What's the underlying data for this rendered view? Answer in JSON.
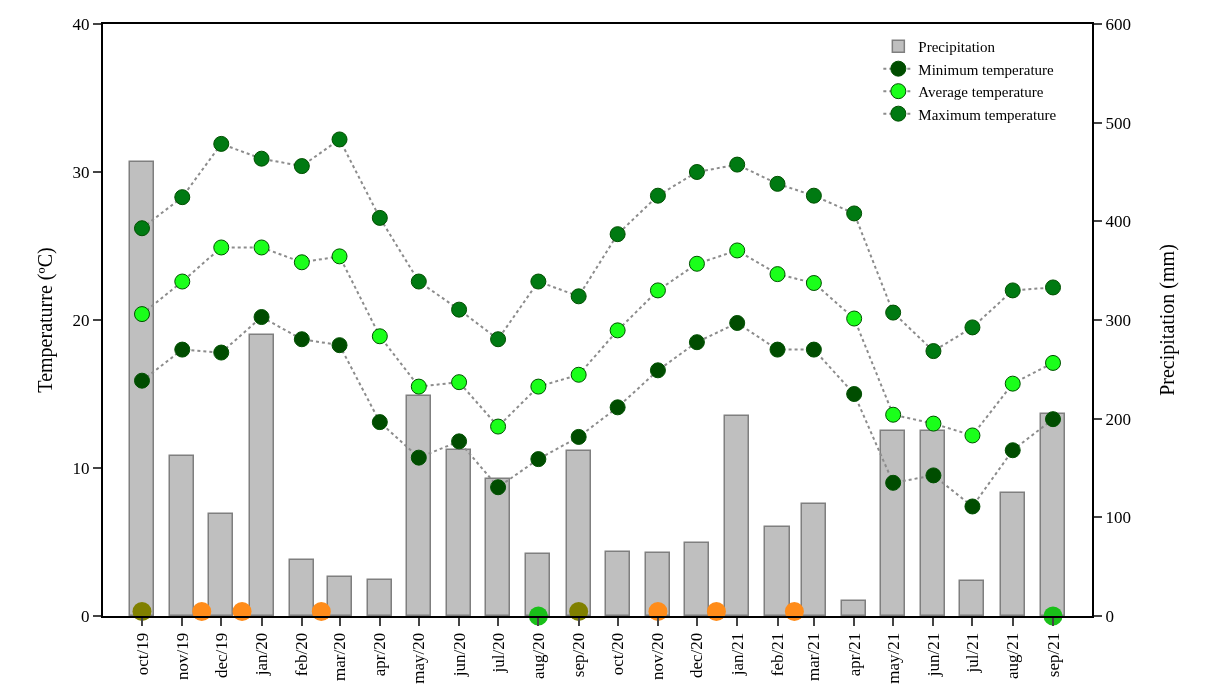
{
  "chart_data": {
    "type": "line",
    "x": [
      "2019-10",
      "2019-11",
      "2019-12",
      "2020-01",
      "2020-02",
      "2020-03",
      "2020-04",
      "2020-05",
      "2020-06",
      "2020-07",
      "2020-08",
      "2020-09",
      "2020-10",
      "2020-11",
      "2020-12",
      "2021-01",
      "2021-02",
      "2021-03",
      "2021-04",
      "2021-05",
      "2021-06",
      "2021-07",
      "2021-08",
      "2021-09"
    ],
    "xlim": [
      "2019-09-01",
      "2021-10-01"
    ],
    "xticks": [
      {
        "value": "2019-10",
        "label": "oct/19"
      },
      {
        "value": "2019-11",
        "label": "nov/19"
      },
      {
        "value": "2019-12",
        "label": "dec/19"
      },
      {
        "value": "2020-01",
        "label": "jan/20"
      },
      {
        "value": "2020-02",
        "label": "feb/20"
      },
      {
        "value": "2020-03",
        "label": "mar/20"
      },
      {
        "value": "2020-04",
        "label": "apr/20"
      },
      {
        "value": "2020-05",
        "label": "may/20"
      },
      {
        "value": "2020-06",
        "label": "jun/20"
      },
      {
        "value": "2020-07",
        "label": "jul/20"
      },
      {
        "value": "2020-08",
        "label": "aug/20"
      },
      {
        "value": "2020-09",
        "label": "sep/20"
      },
      {
        "value": "2020-10",
        "label": "oct/20"
      },
      {
        "value": "2020-11",
        "label": "nov/20"
      },
      {
        "value": "2020-12",
        "label": "dec/20"
      },
      {
        "value": "2021-01",
        "label": "jan/21"
      },
      {
        "value": "2021-02",
        "label": "feb/21"
      },
      {
        "value": "2021-03",
        "label": "mar/21"
      },
      {
        "value": "2021-04",
        "label": "apr/21"
      },
      {
        "value": "2021-05",
        "label": "may/21"
      },
      {
        "value": "2021-06",
        "label": "jun/21"
      },
      {
        "value": "2021-07",
        "label": "jul/21"
      },
      {
        "value": "2021-08",
        "label": "aug/21"
      },
      {
        "value": "2021-09",
        "label": "sep/21"
      }
    ],
    "ylabel": "Temperaturre (ºC)",
    "y2label": "Precipitation (mm)",
    "ylim": [
      0,
      40
    ],
    "yticks": [
      0,
      10,
      20,
      30,
      40
    ],
    "y2lim": [
      0,
      600
    ],
    "y2ticks": [
      0,
      100,
      200,
      300,
      400,
      500,
      600
    ],
    "legend": "top right",
    "marker": "circle",
    "line_style": "dotted",
    "series": [
      {
        "name": "Precipitation",
        "type": "bar",
        "axis": "y2",
        "color": "#bfbfbf",
        "values": [
          460,
          162,
          103,
          285,
          57,
          40,
          36,
          223,
          168,
          139,
          63,
          167,
          65,
          64,
          74,
          203,
          90,
          114,
          15,
          188,
          187,
          35,
          125,
          205
        ]
      },
      {
        "name": "Minimum temperature",
        "color": "#004d00",
        "values": [
          15.9,
          18.0,
          17.8,
          20.2,
          18.7,
          18.3,
          13.1,
          10.7,
          11.8,
          8.7,
          10.6,
          12.1,
          14.1,
          16.6,
          18.5,
          19.8,
          18.0,
          18.0,
          15.0,
          9.0,
          9.5,
          7.4,
          11.2,
          13.3
        ]
      },
      {
        "name": "Average temperature",
        "color": "#1aff1a",
        "values": [
          20.4,
          22.6,
          24.9,
          24.9,
          23.9,
          24.3,
          18.9,
          15.5,
          15.8,
          12.8,
          15.5,
          16.3,
          19.3,
          22.0,
          23.8,
          24.7,
          23.1,
          22.5,
          20.1,
          13.6,
          13.0,
          12.2,
          15.7,
          17.1
        ]
      },
      {
        "name": "Maximum temperature",
        "color": "#007a12",
        "values": [
          26.2,
          28.3,
          31.9,
          30.9,
          30.4,
          32.2,
          26.9,
          22.6,
          20.7,
          18.7,
          22.6,
          21.6,
          25.8,
          28.4,
          30.0,
          30.5,
          29.2,
          28.4,
          27.2,
          20.5,
          17.9,
          19.5,
          22.0,
          22.2
        ]
      },
      {
        "type": "scatter",
        "color": "#808000",
        "x": [
          "2019-10-01",
          "2020-09-01"
        ],
        "values": [
          0.3,
          0.3
        ]
      },
      {
        "type": "scatter",
        "color": "#ff8c1a",
        "x": [
          "2019-11-16",
          "2019-12-17",
          "2020-02-16",
          "2020-11-01",
          "2020-12-16",
          "2021-02-14"
        ],
        "values": [
          0.3,
          0.3,
          0.3,
          0.3,
          0.3,
          0.3
        ]
      },
      {
        "type": "scatter",
        "color": "#19c019",
        "x": [
          "2020-08-01",
          "2021-09-01"
        ],
        "values": [
          0,
          0
        ]
      }
    ]
  }
}
